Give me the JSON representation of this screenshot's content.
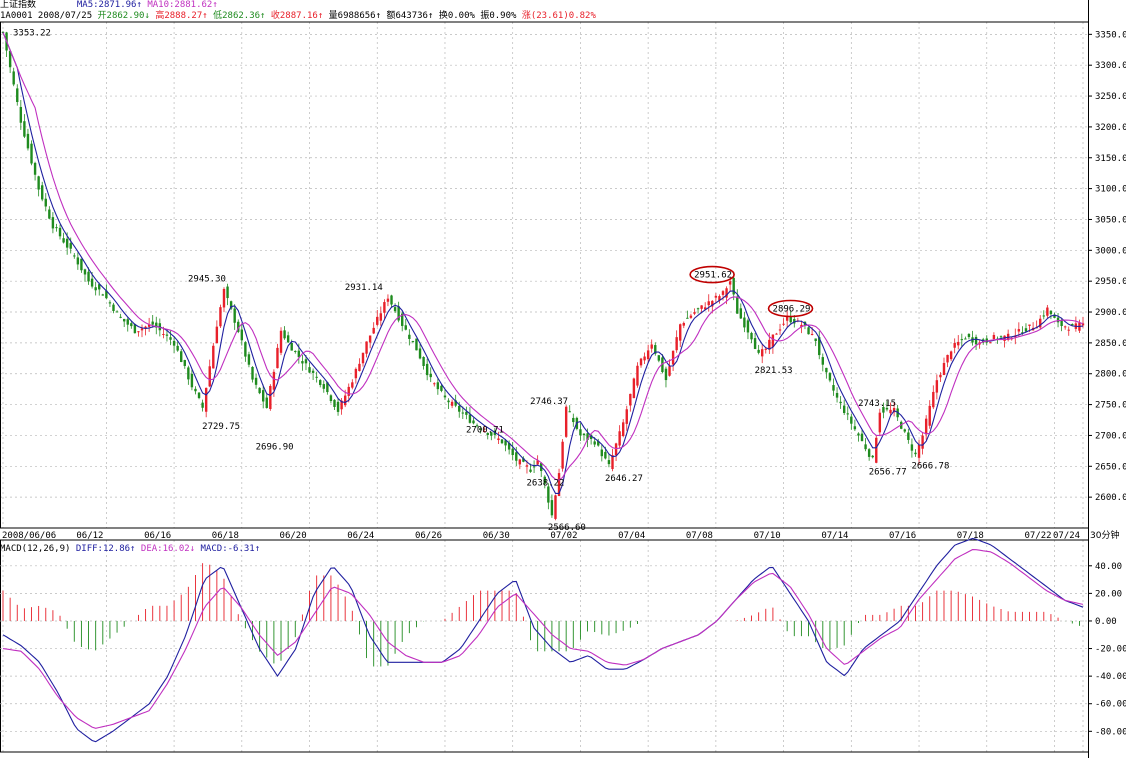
{
  "header": {
    "title": "上证指数",
    "ma5": "MA5:2871.96↑",
    "ma10": "MA10:2881.62↑",
    "code_date": "1A0001 2008/07/25",
    "open": "开2862.90↓",
    "high": "高2888.27↑",
    "low": "低2862.36↑",
    "close": "收2887.16↑",
    "volume": "量6988656↑",
    "amount": "额643736↑",
    "turnover": "换0.00%",
    "amplitude": "振0.90%",
    "change": "涨(23.61)0.82%"
  },
  "macd_header": {
    "params": "MACD(12,26,9)",
    "diff": "DIFF:12.86↑",
    "dea": "DEA:16.02↓",
    "macd": "MACD:-6.31↑"
  },
  "period_label": "30分钟",
  "colors": {
    "up": "#e8202a",
    "down": "#1f8b1f",
    "ma5": "#2020a0",
    "ma10": "#c030c0",
    "grid": "#b8b8b8",
    "circle": "#c00000"
  },
  "chart_data": [
    {
      "type": "candlestick",
      "title": "上证指数",
      "x_ticks": [
        "2008/06/06",
        "06/12",
        "06/16",
        "06/18",
        "06/20",
        "06/24",
        "06/26",
        "06/30",
        "07/02",
        "07/04",
        "07/08",
        "07/10",
        "07/14",
        "07/16",
        "07/18",
        "07/22",
        "07/24"
      ],
      "ylim": [
        2550,
        3370
      ],
      "y_ticks": [
        2600,
        2650,
        2700,
        2750,
        2800,
        2850,
        2900,
        2950,
        3000,
        3050,
        3100,
        3150,
        3200,
        3250,
        3300,
        3350
      ],
      "grid": true,
      "close_anchors": [
        [
          0,
          3353
        ],
        [
          5,
          3210
        ],
        [
          10,
          3100
        ],
        [
          14,
          3040
        ],
        [
          20,
          2990
        ],
        [
          24,
          2950
        ],
        [
          28,
          2930
        ],
        [
          33,
          2890
        ],
        [
          37,
          2870
        ],
        [
          42,
          2880
        ],
        [
          48,
          2850
        ],
        [
          53,
          2780
        ],
        [
          56,
          2745
        ],
        [
          60,
          2880
        ],
        [
          62,
          2935
        ],
        [
          66,
          2870
        ],
        [
          70,
          2790
        ],
        [
          74,
          2745
        ],
        [
          78,
          2870
        ],
        [
          80,
          2850
        ],
        [
          84,
          2820
        ],
        [
          90,
          2780
        ],
        [
          94,
          2740
        ],
        [
          98,
          2790
        ],
        [
          102,
          2850
        ],
        [
          106,
          2900
        ],
        [
          108,
          2925
        ],
        [
          112,
          2880
        ],
        [
          116,
          2840
        ],
        [
          120,
          2790
        ],
        [
          124,
          2760
        ],
        [
          128,
          2740
        ],
        [
          132,
          2720
        ],
        [
          136,
          2705
        ],
        [
          140,
          2690
        ],
        [
          144,
          2660
        ],
        [
          148,
          2645
        ],
        [
          150,
          2660
        ],
        [
          152,
          2620
        ],
        [
          154,
          2570
        ],
        [
          156,
          2640
        ],
        [
          158,
          2745
        ],
        [
          162,
          2700
        ],
        [
          166,
          2690
        ],
        [
          170,
          2650
        ],
        [
          174,
          2720
        ],
        [
          178,
          2810
        ],
        [
          182,
          2850
        ],
        [
          186,
          2790
        ],
        [
          190,
          2880
        ],
        [
          194,
          2900
        ],
        [
          198,
          2915
        ],
        [
          202,
          2930
        ],
        [
          204,
          2950
        ],
        [
          206,
          2900
        ],
        [
          208,
          2880
        ],
        [
          210,
          2860
        ],
        [
          212,
          2830
        ],
        [
          214,
          2840
        ],
        [
          216,
          2860
        ],
        [
          220,
          2890
        ],
        [
          224,
          2880
        ],
        [
          228,
          2855
        ],
        [
          230,
          2810
        ],
        [
          234,
          2760
        ],
        [
          238,
          2720
        ],
        [
          242,
          2680
        ],
        [
          244,
          2660
        ],
        [
          246,
          2740
        ],
        [
          250,
          2740
        ],
        [
          254,
          2690
        ],
        [
          256,
          2668
        ],
        [
          258,
          2700
        ],
        [
          262,
          2790
        ],
        [
          266,
          2840
        ],
        [
          270,
          2860
        ],
        [
          274,
          2850
        ],
        [
          278,
          2858
        ],
        [
          282,
          2860
        ],
        [
          286,
          2870
        ],
        [
          290,
          2880
        ],
        [
          293,
          2905
        ],
        [
          296,
          2880
        ],
        [
          300,
          2875
        ],
        [
          303,
          2880
        ]
      ],
      "price_labels": [
        {
          "text": "3353.22",
          "bar": 0,
          "price": 3353,
          "pos": "right"
        },
        {
          "text": "2945.30",
          "bar": 62,
          "price": 2945,
          "pos": "left"
        },
        {
          "text": "2729.75",
          "bar": 57,
          "price": 2730,
          "pos": "below"
        },
        {
          "text": "2696.90",
          "bar": 72,
          "price": 2697,
          "pos": "below"
        },
        {
          "text": "2931.14",
          "bar": 106,
          "price": 2931,
          "pos": "left"
        },
        {
          "text": "2700.71",
          "bar": 140,
          "price": 2700,
          "pos": "left"
        },
        {
          "text": "2638.22",
          "bar": 148,
          "price": 2638,
          "pos": "below"
        },
        {
          "text": "2746.37",
          "bar": 158,
          "price": 2746,
          "pos": "left"
        },
        {
          "text": "2566.60",
          "bar": 154,
          "price": 2566,
          "pos": "below"
        },
        {
          "text": "2646.27",
          "bar": 170,
          "price": 2646,
          "pos": "below"
        },
        {
          "text": "2951.62",
          "bar": 204,
          "price": 2951,
          "pos": "left",
          "circled": true
        },
        {
          "text": "2896.29",
          "bar": 226,
          "price": 2896,
          "pos": "left",
          "circled": true
        },
        {
          "text": "2821.53",
          "bar": 212,
          "price": 2821,
          "pos": "below"
        },
        {
          "text": "2743.15",
          "bar": 250,
          "price": 2743,
          "pos": "left"
        },
        {
          "text": "2656.77",
          "bar": 244,
          "price": 2656,
          "pos": "below"
        },
        {
          "text": "2666.78",
          "bar": 256,
          "price": 2666,
          "pos": "below"
        }
      ]
    },
    {
      "type": "macd",
      "title": "MACD(12,26,9)",
      "series": [
        {
          "name": "DIFF",
          "values": [
            -10,
            -18,
            -30,
            -52,
            -78,
            -88,
            -80,
            -70,
            -60,
            -40,
            -10,
            30,
            40,
            10,
            -20,
            -40,
            -20,
            20,
            40,
            25,
            -10,
            -30,
            -30,
            -30,
            -30,
            -20,
            0,
            20,
            30,
            -5,
            -20,
            -30,
            -25,
            -35,
            -35,
            -28,
            -20,
            -15,
            -10,
            0,
            15,
            30,
            40,
            20,
            0,
            -30,
            -40,
            -20,
            -10,
            0,
            20,
            40,
            55,
            60,
            55,
            45,
            35,
            25,
            15,
            10
          ]
        },
        {
          "name": "DEA",
          "values": [
            -20,
            -22,
            -35,
            -55,
            -70,
            -78,
            -75,
            -70,
            -65,
            -45,
            -20,
            10,
            25,
            10,
            -10,
            -25,
            -15,
            5,
            25,
            20,
            5,
            -15,
            -25,
            -30,
            -30,
            -25,
            -10,
            10,
            20,
            5,
            -10,
            -20,
            -22,
            -30,
            -32,
            -28,
            -20,
            -15,
            -10,
            0,
            15,
            28,
            35,
            25,
            5,
            -20,
            -32,
            -22,
            -12,
            -5,
            15,
            30,
            45,
            52,
            50,
            42,
            32,
            22,
            15,
            12
          ]
        }
      ],
      "ylim": [
        -95,
        50
      ],
      "y_ticks": [
        40,
        20,
        0,
        -20,
        -40,
        -60,
        -80
      ]
    }
  ]
}
